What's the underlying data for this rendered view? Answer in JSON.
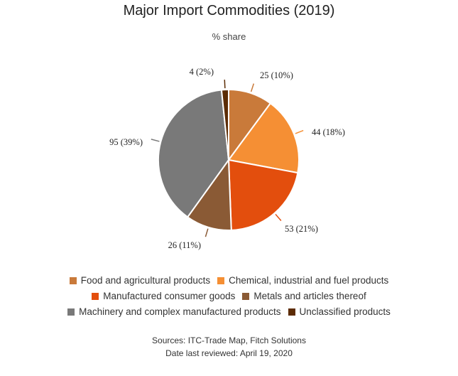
{
  "chart_data": {
    "type": "pie",
    "title": "Major Import Commodities (2019)",
    "subtitle": "% share",
    "slices": [
      {
        "name": "Food and agricultural products",
        "value": 25,
        "percent": 10,
        "label": "25 (10%)",
        "color": "#c97a3a"
      },
      {
        "name": "Chemical, industrial and fuel products",
        "value": 44,
        "percent": 18,
        "label": "44 (18%)",
        "color": "#f58f34"
      },
      {
        "name": "Manufactured consumer goods",
        "value": 53,
        "percent": 21,
        "label": "53 (21%)",
        "color": "#e34e0d"
      },
      {
        "name": "Metals and articles thereof",
        "value": 26,
        "percent": 11,
        "label": "26 (11%)",
        "color": "#8a5a35"
      },
      {
        "name": "Machinery and complex manufactured products",
        "value": 95,
        "percent": 39,
        "label": "95 (39%)",
        "color": "#797979"
      },
      {
        "name": "Unclassified products",
        "value": 4,
        "percent": 2,
        "label": "4 (2%)",
        "color": "#5c2c04"
      }
    ],
    "legend_position": "bottom",
    "legend_rows": [
      [
        0,
        1
      ],
      [
        2,
        3
      ],
      [
        4,
        5
      ]
    ]
  },
  "footer": {
    "sources": "Sources: ITC-Trade Map, Fitch Solutions",
    "reviewed": "Date last reviewed: April 19, 2020"
  }
}
